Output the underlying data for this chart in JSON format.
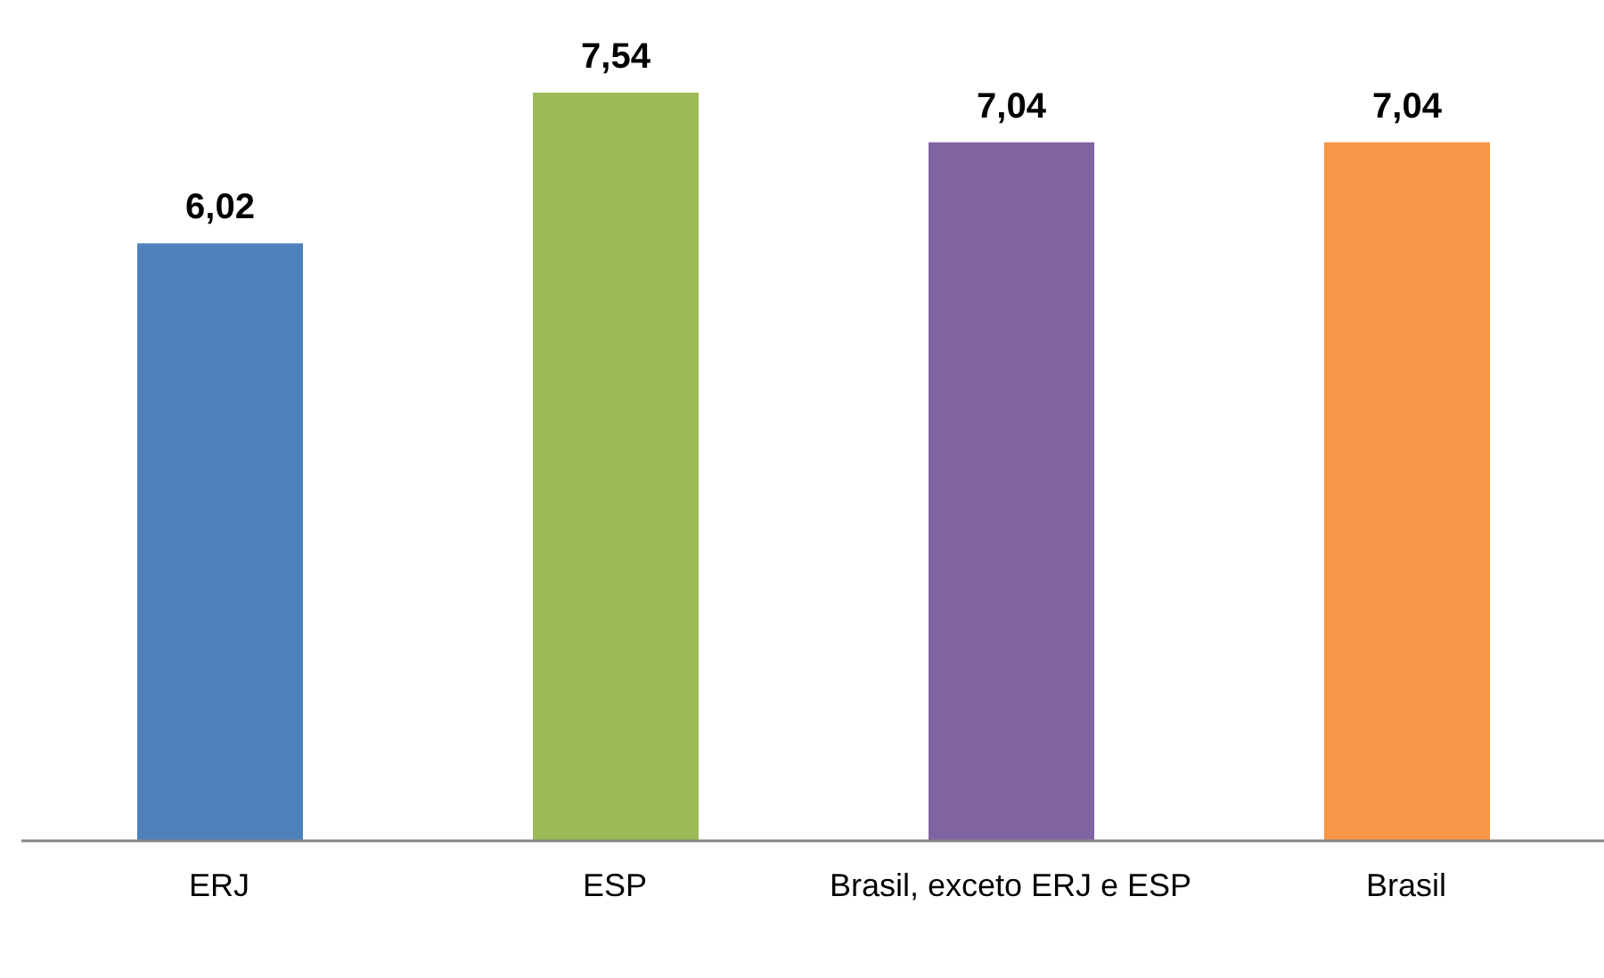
{
  "chart_data": {
    "type": "bar",
    "categories": [
      "ERJ",
      "ESP",
      "Brasil, exceto ERJ e ESP",
      "Brasil"
    ],
    "values": [
      6.02,
      7.54,
      7.04,
      7.04
    ],
    "colors": [
      "#4f81bd",
      "#9bbb59",
      "#8064a2",
      "#f79646"
    ],
    "value_labels": [
      "6,02",
      "7,54",
      "7,04",
      "7,04"
    ],
    "grid": false,
    "legend": false
  }
}
